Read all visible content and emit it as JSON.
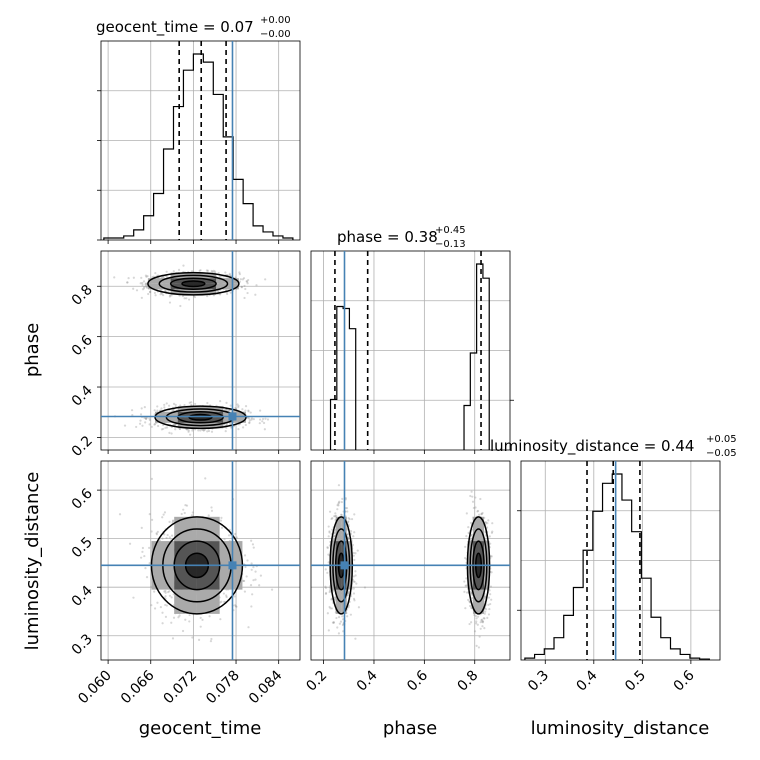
{
  "chart_data": {
    "type": "corner",
    "parameters": [
      {
        "name": "geocent_time",
        "median": 0.07,
        "plus": "+0.00",
        "minus": "−0.00",
        "range": [
          0.059,
          0.087
        ],
        "ticks": [
          0.06,
          0.066,
          0.072,
          0.078,
          0.084
        ],
        "tick_labels": [
          "0.060",
          "0.066",
          "0.072",
          "0.078",
          "0.084"
        ],
        "truth": 0.0775,
        "quantiles": [
          0.07,
          0.0731,
          0.0766
        ],
        "hist_x": [
          0.0601,
          0.0615,
          0.0629,
          0.0643,
          0.0657,
          0.0671,
          0.0685,
          0.0699,
          0.0713,
          0.0727,
          0.0741,
          0.0755,
          0.0769,
          0.0783,
          0.0797,
          0.0811,
          0.0825,
          0.0839,
          0.0853
        ],
        "hist_y": [
          0.01,
          0.01,
          0.02,
          0.05,
          0.12,
          0.23,
          0.45,
          0.66,
          0.84,
          0.92,
          0.88,
          0.72,
          0.51,
          0.3,
          0.18,
          0.07,
          0.04,
          0.02,
          0.01
        ],
        "title_label": "geocent_time = 0.07",
        "title_plus": "+0.00",
        "title_minus": "−0.00",
        "axis_label": "geocent_time"
      },
      {
        "name": "phase",
        "median": 0.38,
        "plus": "+0.45",
        "minus": "−0.13",
        "range": [
          0.15,
          0.94
        ],
        "ticks": [
          0.2,
          0.4,
          0.6,
          0.8
        ],
        "tick_labels": [
          "0.2",
          "0.4",
          "0.6",
          "0.8"
        ],
        "truth": 0.283,
        "quantiles": [
          0.245,
          0.375,
          0.825
        ],
        "hist_x": [
          0.24,
          0.265,
          0.29,
          0.315,
          0.77,
          0.795,
          0.82,
          0.845
        ],
        "hist_y": [
          0.25,
          0.71,
          0.7,
          0.6,
          0.22,
          0.48,
          0.92,
          0.85
        ],
        "title_label": "phase = 0.38",
        "title_plus": "+0.45",
        "title_minus": "−0.13",
        "axis_label": "phase"
      },
      {
        "name": "luminosity_distance",
        "median": 0.44,
        "plus": "+0.05",
        "minus": "−0.05",
        "range": [
          0.25,
          0.66
        ],
        "ticks": [
          0.3,
          0.4,
          0.5,
          0.6
        ],
        "tick_labels": [
          "0.3",
          "0.4",
          "0.5",
          "0.6"
        ],
        "truth": 0.445,
        "quantiles": [
          0.386,
          0.44,
          0.495
        ],
        "hist_x": [
          0.268,
          0.288,
          0.308,
          0.328,
          0.348,
          0.368,
          0.388,
          0.408,
          0.428,
          0.448,
          0.468,
          0.488,
          0.508,
          0.528,
          0.548,
          0.568,
          0.588,
          0.608,
          0.628
        ],
        "hist_y": [
          0.01,
          0.03,
          0.06,
          0.12,
          0.24,
          0.39,
          0.59,
          0.8,
          0.95,
          1.0,
          0.86,
          0.69,
          0.44,
          0.23,
          0.12,
          0.06,
          0.03,
          0.01,
          0.005
        ],
        "title_label": "luminosity_distance = 0.44",
        "title_plus": "+0.05",
        "title_minus": "−0.05",
        "axis_label": "luminosity_distance"
      }
    ],
    "truth_color": "#4682b4",
    "grid": true,
    "modes_2d": [
      {
        "pair": [
          0,
          1
        ],
        "centers": [
          [
            0.072,
            0.81
          ],
          [
            0.073,
            0.28
          ]
        ],
        "sd": [
          [
            0.0032,
            0.022
          ],
          [
            0.0032,
            0.022
          ]
        ]
      },
      {
        "pair": [
          0,
          2
        ],
        "centers": [
          [
            0.0725,
            0.445
          ]
        ],
        "sd": [
          [
            0.0032,
            0.05
          ]
        ]
      },
      {
        "pair": [
          1,
          2
        ],
        "centers": [
          [
            0.27,
            0.445
          ],
          [
            0.815,
            0.445
          ]
        ],
        "sd": [
          [
            0.022,
            0.05
          ],
          [
            0.022,
            0.05
          ]
        ]
      }
    ]
  }
}
